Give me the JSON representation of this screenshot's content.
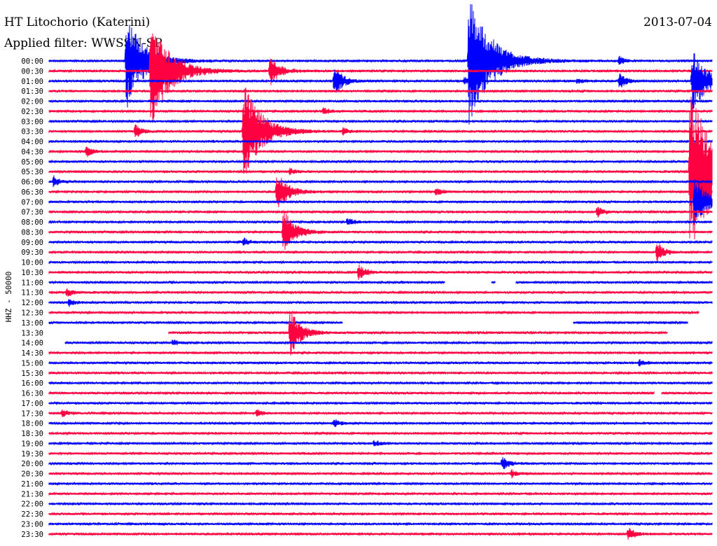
{
  "header": {
    "station": "HT Litochorio (Katerini)",
    "filter": "Applied filter: WWSSN-SP",
    "date": "2013-07-04",
    "channel": "HHZ - 50000"
  },
  "chart_data": {
    "type": "line",
    "title": "HT Litochorio (Katerini)",
    "subtitle": "Applied filter: WWSSN-SP",
    "ylabel": "HHZ - 50000",
    "colors": [
      "#0000ff",
      "#ff0040"
    ],
    "x_range_minutes": [
      0,
      30
    ],
    "rows": [
      "00:00",
      "00:30",
      "01:00",
      "01:30",
      "02:00",
      "02:30",
      "03:00",
      "03:30",
      "04:00",
      "04:30",
      "05:00",
      "05:30",
      "06:00",
      "06:30",
      "07:00",
      "07:30",
      "08:00",
      "08:30",
      "09:00",
      "09:30",
      "10:00",
      "10:30",
      "11:00",
      "11:30",
      "12:00",
      "12:30",
      "13:00",
      "13:30",
      "14:00",
      "14:30",
      "15:00",
      "15:30",
      "16:00",
      "16:30",
      "17:00",
      "17:30",
      "18:00",
      "18:30",
      "19:00",
      "19:30",
      "20:00",
      "20:30",
      "21:00",
      "21:30",
      "22:00",
      "22:30",
      "23:00",
      "23:30"
    ],
    "events": [
      {
        "row": "00:00",
        "minute": 3.5,
        "amp": 70
      },
      {
        "row": "00:00",
        "minute": 19.0,
        "amp": 95
      },
      {
        "row": "00:00",
        "minute": 25.8,
        "amp": 6
      },
      {
        "row": "00:30",
        "minute": 4.6,
        "amp": 80
      },
      {
        "row": "00:30",
        "minute": 10.0,
        "amp": 24
      },
      {
        "row": "01:00",
        "minute": 12.9,
        "amp": 22
      },
      {
        "row": "01:00",
        "minute": 18.8,
        "amp": 5
      },
      {
        "row": "01:00",
        "minute": 23.9,
        "amp": 4
      },
      {
        "row": "01:00",
        "minute": 25.8,
        "amp": 12
      },
      {
        "row": "01:00",
        "minute": 29.1,
        "amp": 50
      },
      {
        "row": "02:30",
        "minute": 12.4,
        "amp": 5
      },
      {
        "row": "03:30",
        "minute": 3.9,
        "amp": 10
      },
      {
        "row": "03:30",
        "minute": 8.8,
        "amp": 72
      },
      {
        "row": "03:30",
        "minute": 13.3,
        "amp": 5
      },
      {
        "row": "04:30",
        "minute": 1.7,
        "amp": 8
      },
      {
        "row": "05:30",
        "minute": 10.9,
        "amp": 5
      },
      {
        "row": "05:30",
        "minute": 29.0,
        "amp": 120
      },
      {
        "row": "06:00",
        "minute": 0.2,
        "amp": 8
      },
      {
        "row": "06:30",
        "minute": 10.3,
        "amp": 32
      },
      {
        "row": "06:30",
        "minute": 17.5,
        "amp": 6
      },
      {
        "row": "07:00",
        "minute": 29.2,
        "amp": 40
      },
      {
        "row": "07:30",
        "minute": 24.8,
        "amp": 8
      },
      {
        "row": "08:00",
        "minute": 13.5,
        "amp": 6
      },
      {
        "row": "08:30",
        "minute": 10.6,
        "amp": 34
      },
      {
        "row": "09:00",
        "minute": 8.8,
        "amp": 6
      },
      {
        "row": "09:30",
        "minute": 27.5,
        "amp": 14
      },
      {
        "row": "10:30",
        "minute": 14.0,
        "amp": 12
      },
      {
        "row": "11:30",
        "minute": 0.8,
        "amp": 6
      },
      {
        "row": "12:00",
        "minute": 0.9,
        "amp": 5
      },
      {
        "row": "13:30",
        "minute": 10.9,
        "amp": 34
      },
      {
        "row": "14:00",
        "minute": 5.6,
        "amp": 4
      },
      {
        "row": "15:00",
        "minute": 26.7,
        "amp": 5
      },
      {
        "row": "17:30",
        "minute": 0.6,
        "amp": 6
      },
      {
        "row": "17:30",
        "minute": 9.4,
        "amp": 5
      },
      {
        "row": "18:00",
        "minute": 12.9,
        "amp": 6
      },
      {
        "row": "19:00",
        "minute": 14.7,
        "amp": 5
      },
      {
        "row": "20:00",
        "minute": 20.5,
        "amp": 10
      },
      {
        "row": "20:30",
        "minute": 20.9,
        "amp": 6
      },
      {
        "row": "23:30",
        "minute": 26.2,
        "amp": 10
      }
    ],
    "gaps": [
      {
        "row": "11:00",
        "from": 17.9,
        "to": 20.0
      },
      {
        "row": "11:00",
        "from": 20.2,
        "to": 21.1
      },
      {
        "row": "12:30",
        "from": 29.4,
        "to": 30.0
      },
      {
        "row": "13:00",
        "from": 13.3,
        "to": 23.7
      },
      {
        "row": "13:00",
        "from": 28.9,
        "to": 30.0
      },
      {
        "row": "13:30",
        "from": 0.0,
        "to": 5.4
      },
      {
        "row": "13:30",
        "from": 28.0,
        "to": 30.0
      },
      {
        "row": "14:00",
        "from": 0.0,
        "to": 0.7
      },
      {
        "row": "16:30",
        "from": 27.4,
        "to": 27.7
      }
    ]
  }
}
